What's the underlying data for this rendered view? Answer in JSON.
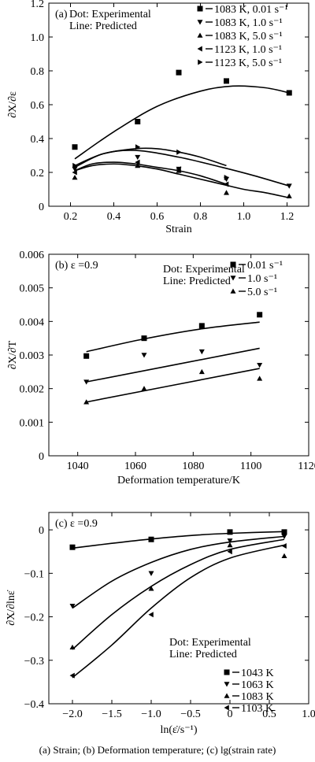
{
  "caption": "(a)  Strain; (b) Deformation temperature; (c) lg(strain rate)",
  "chart_data": [
    {
      "type": "scatter",
      "panel_label": "(a)",
      "title": "",
      "note_lines": [
        "Dot: Experimental",
        "Line: Predicted"
      ],
      "xlabel": "Strain",
      "ylabel": "∂X/∂ε",
      "xlim": [
        0.1,
        1.3
      ],
      "ylim": [
        0,
        1.2
      ],
      "xticks": [
        0.2,
        0.4,
        0.6,
        0.8,
        1.0,
        1.2
      ],
      "xticklabels": [
        "0.2",
        "0.4",
        "0.6",
        "0.8",
        "1.0",
        "1.2"
      ],
      "yticks": [
        0,
        0.2,
        0.4,
        0.6,
        0.8,
        1.0,
        1.2
      ],
      "yticklabels": [
        "0",
        "0.2",
        "0.4",
        "0.6",
        "0.8",
        "1.0",
        "1.2"
      ],
      "legend_position": "top-right",
      "series": [
        {
          "name": "1083 K, 0.01 s⁻¹",
          "marker": "square",
          "x": [
            0.22,
            0.51,
            0.7,
            0.92,
            1.21
          ],
          "y": [
            0.35,
            0.5,
            0.79,
            0.74,
            0.67
          ],
          "line_x": [
            0.22,
            0.4,
            0.6,
            0.8,
            0.95,
            1.1,
            1.21
          ],
          "line_y": [
            0.28,
            0.44,
            0.59,
            0.68,
            0.71,
            0.7,
            0.67
          ]
        },
        {
          "name": "1083 K, 1.0 s⁻¹",
          "marker": "triangle-down",
          "x": [
            0.22,
            0.51,
            0.7,
            0.92,
            1.21
          ],
          "y": [
            0.22,
            0.29,
            0.22,
            0.16,
            0.12
          ],
          "line_x": [
            0.22,
            0.35,
            0.5,
            0.7,
            0.9,
            1.05,
            1.21
          ],
          "line_y": [
            0.23,
            0.31,
            0.33,
            0.29,
            0.23,
            0.18,
            0.12
          ]
        },
        {
          "name": "1083 K, 5.0 s⁻¹",
          "marker": "triangle-up",
          "x": [
            0.22,
            0.51,
            0.7,
            0.92,
            1.21
          ],
          "y": [
            0.17,
            0.24,
            0.21,
            0.08,
            0.06
          ],
          "line_x": [
            0.22,
            0.3,
            0.4,
            0.5,
            0.6,
            0.7,
            0.8,
            0.9,
            1.0,
            1.1,
            1.21
          ],
          "line_y": [
            0.21,
            0.24,
            0.25,
            0.24,
            0.22,
            0.19,
            0.16,
            0.13,
            0.1,
            0.08,
            0.05
          ]
        },
        {
          "name": "1123 K, 1.0 s⁻¹",
          "marker": "triangle-left",
          "x": [
            0.22,
            0.51,
            0.7,
            0.92
          ],
          "y": [
            0.2,
            0.26,
            0.22,
            0.13
          ],
          "line_x": [
            0.22,
            0.3,
            0.4,
            0.5,
            0.6,
            0.7,
            0.8,
            0.92
          ],
          "line_y": [
            0.21,
            0.25,
            0.26,
            0.25,
            0.23,
            0.21,
            0.18,
            0.13
          ]
        },
        {
          "name": "1123 K, 5.0 s⁻¹",
          "marker": "triangle-right",
          "x": [
            0.22,
            0.51,
            0.7,
            0.92
          ],
          "y": [
            0.24,
            0.35,
            0.32,
            0.17
          ],
          "line_x": [
            0.22,
            0.35,
            0.5,
            0.6,
            0.7,
            0.8,
            0.92
          ],
          "line_y": [
            0.24,
            0.31,
            0.34,
            0.34,
            0.32,
            0.29,
            0.24
          ]
        }
      ]
    },
    {
      "type": "scatter",
      "panel_label": "(b) ε =0.9",
      "title": "",
      "note_lines": [
        "Dot: Experimental",
        "Line: Predicted"
      ],
      "xlabel": "Deformation temperature/K",
      "ylabel": "∂X/∂T",
      "xlim": [
        1030,
        1120
      ],
      "ylim": [
        0,
        0.006
      ],
      "xticks": [
        1040,
        1060,
        1080,
        1100,
        1120
      ],
      "xticklabels": [
        "1040",
        "1060",
        "1080",
        "1100",
        "1120"
      ],
      "yticks": [
        0,
        0.001,
        0.002,
        0.003,
        0.004,
        0.005,
        0.006
      ],
      "yticklabels": [
        "0",
        "0.001",
        "0.002",
        "0.003",
        "0.004",
        "0.005",
        "0.006"
      ],
      "legend_position": "top-right",
      "series": [
        {
          "name": "0.01 s⁻¹",
          "marker": "square",
          "x": [
            1043,
            1063,
            1083,
            1103
          ],
          "y": [
            0.00297,
            0.0035,
            0.00387,
            0.0042
          ],
          "line_x": [
            1043,
            1063,
            1083,
            1103
          ],
          "line_y": [
            0.0031,
            0.00348,
            0.00378,
            0.00398
          ]
        },
        {
          "name": "1.0 s⁻¹",
          "marker": "triangle-down",
          "x": [
            1043,
            1063,
            1083,
            1103
          ],
          "y": [
            0.0022,
            0.003,
            0.0031,
            0.0027
          ],
          "line_x": [
            1043,
            1103
          ],
          "line_y": [
            0.0022,
            0.0032
          ]
        },
        {
          "name": "5.0 s⁻¹",
          "marker": "triangle-up",
          "x": [
            1043,
            1063,
            1083,
            1103
          ],
          "y": [
            0.0016,
            0.002,
            0.0025,
            0.0023
          ],
          "line_x": [
            1043,
            1103
          ],
          "line_y": [
            0.0016,
            0.0026
          ]
        }
      ]
    },
    {
      "type": "scatter",
      "panel_label": "(c)  ε =0.9",
      "title": "",
      "note_lines": [
        "Dot: Experimental",
        "Line: Predicted"
      ],
      "xlabel": "ln(ε̇/s⁻¹)",
      "ylabel": "∂X/∂lnε̇",
      "xlim": [
        -2.3,
        1.0
      ],
      "ylim": [
        -0.4,
        0.04
      ],
      "xticks": [
        -2.0,
        -1.5,
        -1.0,
        -0.5,
        0,
        0.5,
        1.0
      ],
      "xticklabels": [
        "−2.0",
        "−1.5",
        "−1.0",
        "−0.5",
        "0",
        "0.5",
        "1.0"
      ],
      "yticks": [
        -0.4,
        -0.3,
        -0.2,
        -0.1,
        0
      ],
      "yticklabels": [
        "−0.4",
        "−0.3",
        "−0.2",
        "−0.1",
        "0"
      ],
      "legend_position": "bottom-right",
      "series": [
        {
          "name": "1043 K",
          "marker": "square",
          "x": [
            -2.0,
            -1.0,
            0,
            0.69
          ],
          "y": [
            -0.04,
            -0.022,
            -0.005,
            -0.005
          ],
          "line_x": [
            -2.0,
            -1.5,
            -1.0,
            -0.5,
            0,
            0.69
          ],
          "line_y": [
            -0.042,
            -0.031,
            -0.021,
            -0.013,
            -0.008,
            -0.004
          ]
        },
        {
          "name": "1063 K",
          "marker": "triangle-down",
          "x": [
            -2.0,
            -1.0,
            0,
            0.69
          ],
          "y": [
            -0.175,
            -0.1,
            -0.025,
            -0.015
          ],
          "line_x": [
            -2.0,
            -1.5,
            -1.0,
            -0.5,
            0,
            0.69
          ],
          "line_y": [
            -0.18,
            -0.118,
            -0.075,
            -0.045,
            -0.028,
            -0.015
          ]
        },
        {
          "name": "1083 K",
          "marker": "triangle-up",
          "x": [
            -2.0,
            -1.0,
            0,
            0.69
          ],
          "y": [
            -0.27,
            -0.135,
            -0.035,
            -0.06
          ],
          "line_x": [
            -2.0,
            -1.5,
            -1.0,
            -0.5,
            0,
            0.69
          ],
          "line_y": [
            -0.275,
            -0.195,
            -0.13,
            -0.08,
            -0.045,
            -0.022
          ]
        },
        {
          "name": "1103 K",
          "marker": "triangle-left",
          "x": [
            -2.0,
            -1.0,
            0,
            0.69
          ],
          "y": [
            -0.335,
            -0.195,
            -0.05,
            -0.037
          ],
          "line_x": [
            -2.0,
            -1.5,
            -1.0,
            -0.5,
            0,
            0.69
          ],
          "line_y": [
            -0.34,
            -0.265,
            -0.18,
            -0.11,
            -0.065,
            -0.035
          ]
        }
      ]
    }
  ]
}
